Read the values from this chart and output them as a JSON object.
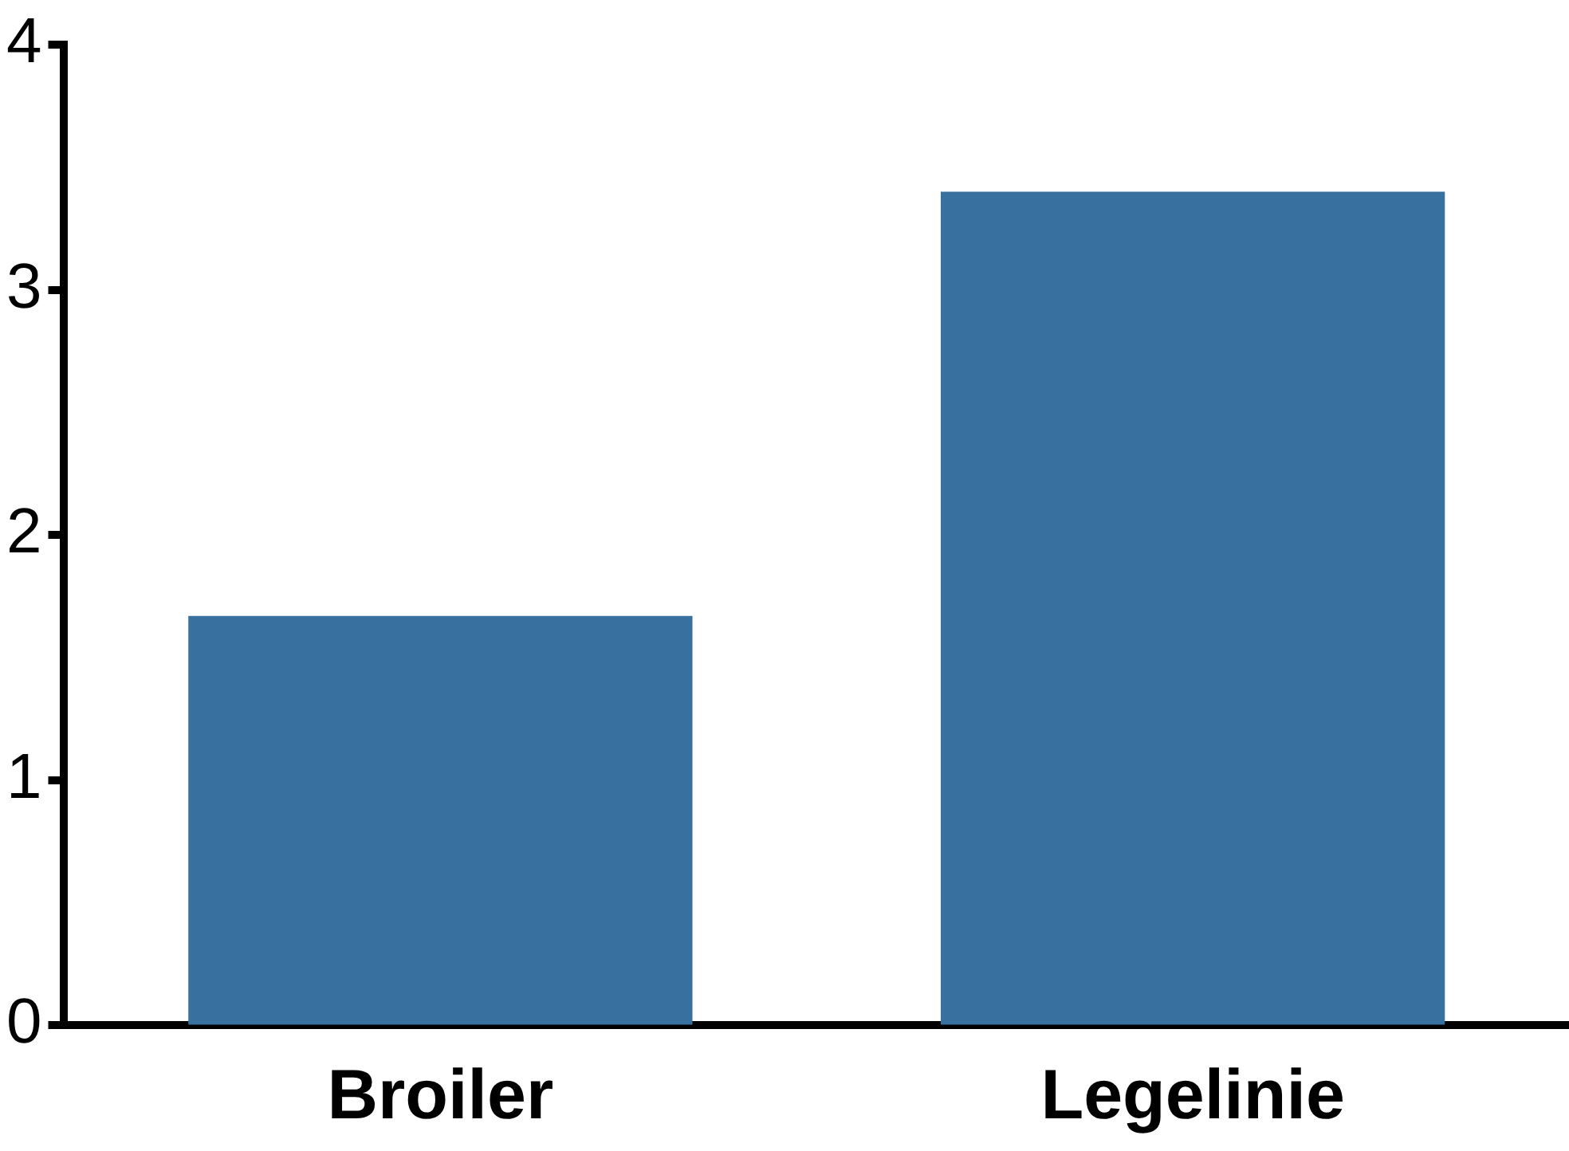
{
  "chart_data": {
    "type": "bar",
    "categories": [
      "Broiler",
      "Legelinie"
    ],
    "values": [
      1.67,
      3.4
    ],
    "color": "#3870a0",
    "ylim": [
      0,
      4
    ],
    "yticks": [
      0,
      1,
      2,
      3,
      4
    ],
    "grid": false,
    "legend": false
  }
}
